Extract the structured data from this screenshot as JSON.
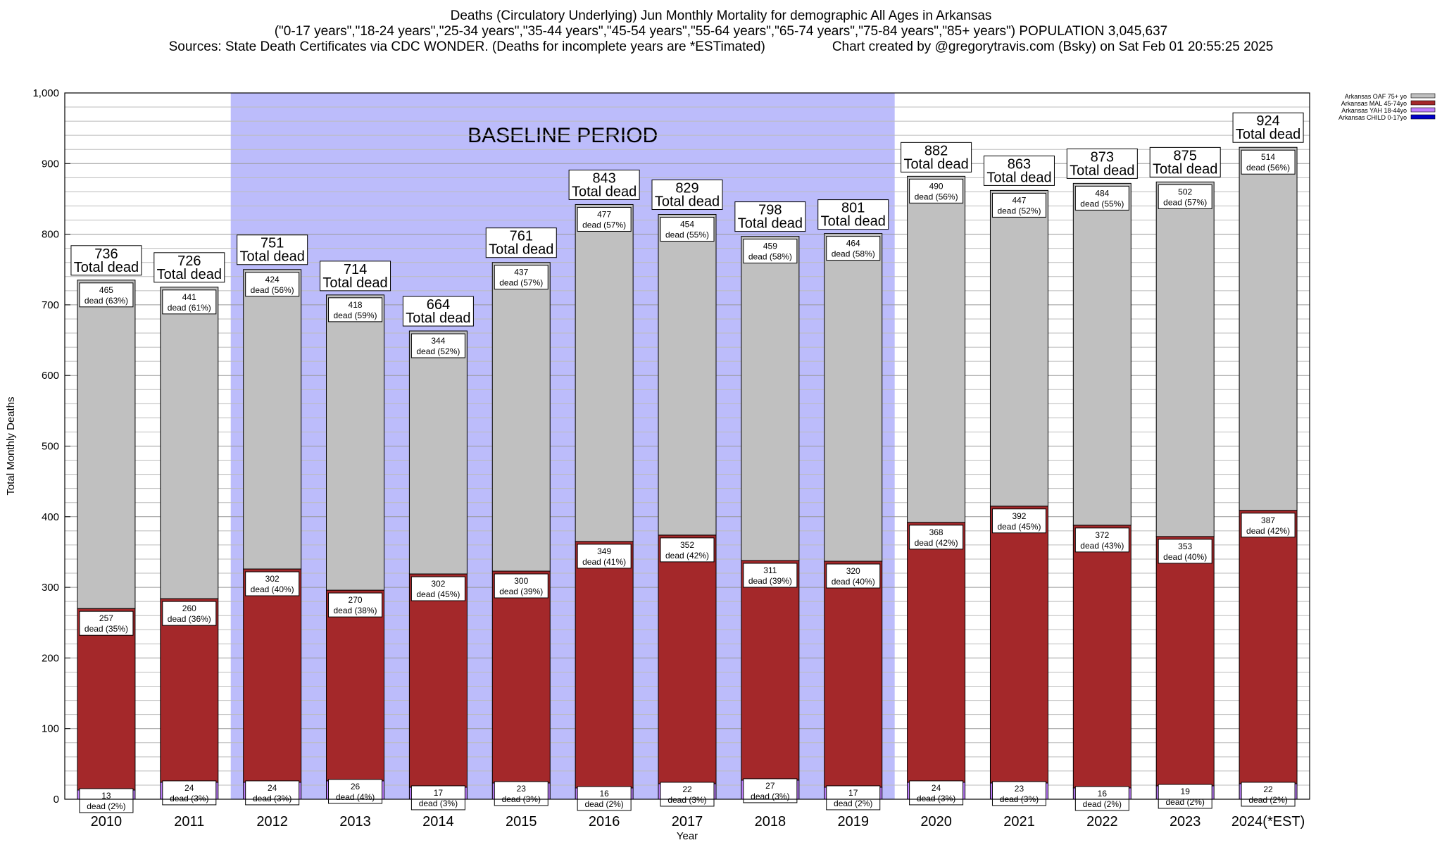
{
  "header": {
    "title": "Deaths (Circulatory Underlying) Jun Monthly Mortality for demographic All Ages in Arkansas",
    "subtitle": "(\"0-17 years\",\"18-24 years\",\"25-34 years\",\"35-44 years\",\"45-54 years\",\"55-64 years\",\"65-74 years\",\"75-84 years\",\"85+ years\") POPULATION 3,045,637",
    "sources": "Sources: State Death Certificates via CDC WONDER. (Deaths for incomplete years are *ESTimated)",
    "credit": "Chart created by @gregorytravis.com (Bsky) on Sat Feb 01 20:55:25 2025"
  },
  "chart_data": {
    "type": "bar",
    "stacked": true,
    "categories": [
      "2010",
      "2011",
      "2012",
      "2013",
      "2014",
      "2015",
      "2016",
      "2017",
      "2018",
      "2019",
      "2020",
      "2021",
      "2022",
      "2023",
      "2024(*EST)"
    ],
    "xlabel": "Year",
    "ylabel": "Total Monthly Deaths",
    "ylim": [
      0,
      1000
    ],
    "yticks": [
      0,
      100,
      200,
      300,
      400,
      500,
      600,
      700,
      800,
      900,
      1000
    ],
    "ytick_labels": [
      "0",
      "100",
      "200",
      "300",
      "400",
      "500",
      "600",
      "700",
      "800",
      "900",
      "1,000"
    ],
    "grid": true,
    "legend_position": "top-right",
    "baseline_period": {
      "label": "BASELINE PERIOD",
      "start": "2012",
      "end": "2019",
      "color": "#bcbcfb"
    },
    "totals": [
      736,
      726,
      751,
      714,
      664,
      761,
      843,
      829,
      798,
      801,
      882,
      863,
      873,
      875,
      924
    ],
    "total_suffix": "Total dead",
    "series": [
      {
        "name": "Arkansas CHILD 0-17yo",
        "color": "#0000c8",
        "values": [
          0,
          0,
          0,
          0,
          0,
          0,
          0,
          0,
          0,
          0,
          0,
          0,
          0,
          0,
          0
        ],
        "labels": [
          "",
          "",
          "",
          "",
          "",
          "",
          "",
          "",
          "",
          "",
          "",
          "",
          "",
          "",
          ""
        ]
      },
      {
        "name": "Arkansas YAH 18-44yo",
        "color": "#c080ff",
        "values": [
          13,
          24,
          24,
          26,
          17,
          23,
          16,
          22,
          27,
          17,
          24,
          23,
          16,
          19,
          22
        ],
        "labels": [
          "dead (2%)",
          "dead (3%)",
          "dead (3%)",
          "dead (4%)",
          "dead (3%)",
          "dead (3%)",
          "dead (2%)",
          "dead (3%)",
          "dead (3%)",
          "dead (2%)",
          "dead (3%)",
          "dead (3%)",
          "dead (2%)",
          "dead (2%)",
          "dead (2%)"
        ]
      },
      {
        "name": "Arkansas MAL 45-74yo",
        "color": "#a4282a",
        "values": [
          257,
          260,
          302,
          270,
          302,
          300,
          349,
          352,
          311,
          320,
          368,
          392,
          372,
          353,
          387
        ],
        "labels": [
          "dead (35%)",
          "dead (36%)",
          "dead (40%)",
          "dead (38%)",
          "dead (45%)",
          "dead (39%)",
          "dead (41%)",
          "dead (42%)",
          "dead (39%)",
          "dead (40%)",
          "dead (42%)",
          "dead (45%)",
          "dead (43%)",
          "dead (40%)",
          "dead (42%)"
        ]
      },
      {
        "name": "Arkansas OAF 75+ yo",
        "color": "#c0c0c0",
        "values": [
          465,
          441,
          424,
          418,
          344,
          437,
          477,
          454,
          459,
          464,
          490,
          447,
          484,
          502,
          514
        ],
        "labels": [
          "dead (63%)",
          "dead (61%)",
          "dead (56%)",
          "dead (59%)",
          "dead (52%)",
          "dead (57%)",
          "dead (57%)",
          "dead (55%)",
          "dead (58%)",
          "dead (58%)",
          "dead (56%)",
          "dead (52%)",
          "dead (55%)",
          "dead (57%)",
          "dead (56%)"
        ]
      }
    ]
  }
}
